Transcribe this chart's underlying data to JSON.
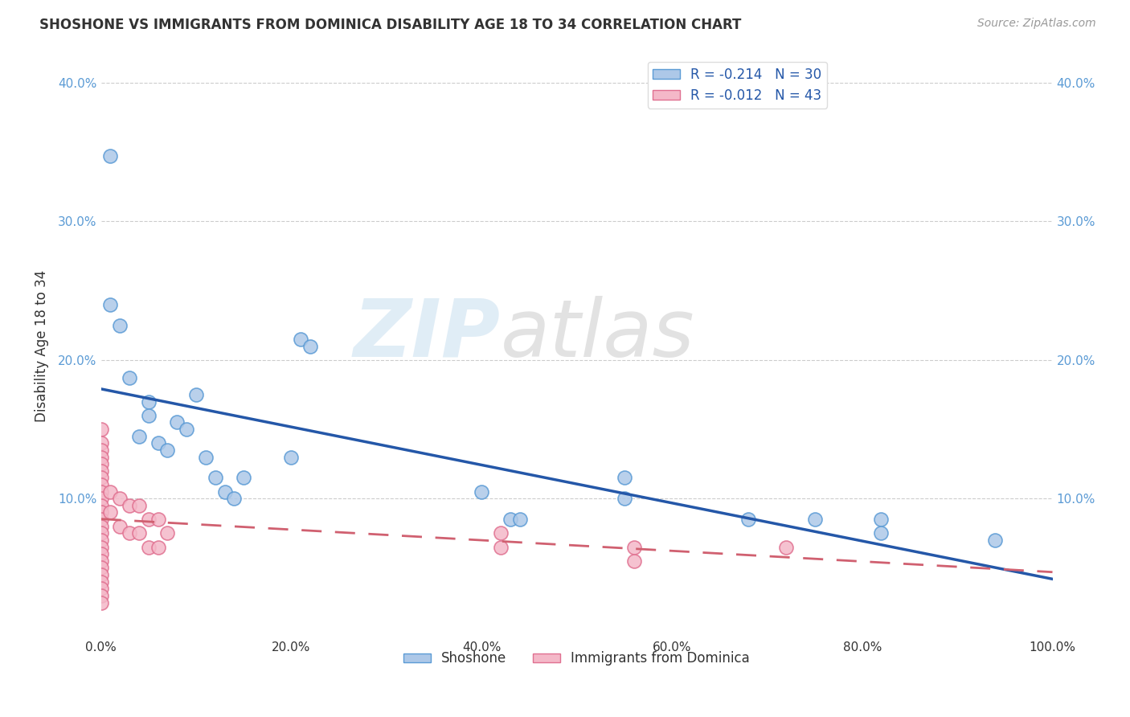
{
  "title": "SHOSHONE VS IMMIGRANTS FROM DOMINICA DISABILITY AGE 18 TO 34 CORRELATION CHART",
  "source": "Source: ZipAtlas.com",
  "ylabel": "Disability Age 18 to 34",
  "xlim": [
    0,
    1.0
  ],
  "ylim": [
    0,
    0.42
  ],
  "x_tick_vals": [
    0.0,
    0.2,
    0.4,
    0.6,
    0.8,
    1.0
  ],
  "x_tick_labels": [
    "0.0%",
    "20.0%",
    "40.0%",
    "60.0%",
    "80.0%",
    "100.0%"
  ],
  "y_tick_vals": [
    0.1,
    0.2,
    0.3,
    0.4
  ],
  "y_tick_labels": [
    "10.0%",
    "20.0%",
    "30.0%",
    "40.0%"
  ],
  "shoshone_color": "#adc8e8",
  "shoshone_edge": "#5b9bd5",
  "dominica_color": "#f4b8c8",
  "dominica_edge": "#e07090",
  "shoshone_line_color": "#2457a8",
  "dominica_line_color": "#d06070",
  "legend_shoshone_label": "R = -0.214   N = 30",
  "legend_dominica_label": "R = -0.012   N = 43",
  "shoshone_x": [
    0.01,
    0.01,
    0.02,
    0.03,
    0.04,
    0.05,
    0.05,
    0.06,
    0.07,
    0.08,
    0.09,
    0.1,
    0.11,
    0.12,
    0.13,
    0.14,
    0.15,
    0.55,
    0.55,
    0.68,
    0.75,
    0.82,
    0.82,
    0.94,
    0.2,
    0.21,
    0.22,
    0.4,
    0.43,
    0.44
  ],
  "shoshone_y": [
    0.347,
    0.24,
    0.225,
    0.187,
    0.145,
    0.17,
    0.16,
    0.14,
    0.135,
    0.155,
    0.15,
    0.175,
    0.13,
    0.115,
    0.105,
    0.1,
    0.115,
    0.115,
    0.1,
    0.085,
    0.085,
    0.085,
    0.075,
    0.07,
    0.13,
    0.215,
    0.21,
    0.105,
    0.085,
    0.085
  ],
  "dominica_x": [
    0.0,
    0.0,
    0.0,
    0.0,
    0.0,
    0.0,
    0.0,
    0.0,
    0.0,
    0.0,
    0.0,
    0.0,
    0.0,
    0.0,
    0.0,
    0.0,
    0.0,
    0.0,
    0.0,
    0.0,
    0.0,
    0.0,
    0.0,
    0.0,
    0.0,
    0.01,
    0.01,
    0.02,
    0.02,
    0.03,
    0.03,
    0.04,
    0.04,
    0.05,
    0.05,
    0.06,
    0.06,
    0.07,
    0.42,
    0.42,
    0.56,
    0.56,
    0.72
  ],
  "dominica_y": [
    0.15,
    0.14,
    0.135,
    0.13,
    0.125,
    0.12,
    0.115,
    0.11,
    0.105,
    0.1,
    0.095,
    0.09,
    0.085,
    0.08,
    0.075,
    0.07,
    0.065,
    0.06,
    0.055,
    0.05,
    0.045,
    0.04,
    0.035,
    0.03,
    0.025,
    0.105,
    0.09,
    0.1,
    0.08,
    0.095,
    0.075,
    0.095,
    0.075,
    0.085,
    0.065,
    0.085,
    0.065,
    0.075,
    0.075,
    0.065,
    0.065,
    0.055,
    0.065
  ],
  "grid_color": "#cccccc",
  "tick_color": "#5b9bd5",
  "label_color": "#333333",
  "title_fontsize": 12,
  "axis_fontsize": 11,
  "legend_fontsize": 12
}
